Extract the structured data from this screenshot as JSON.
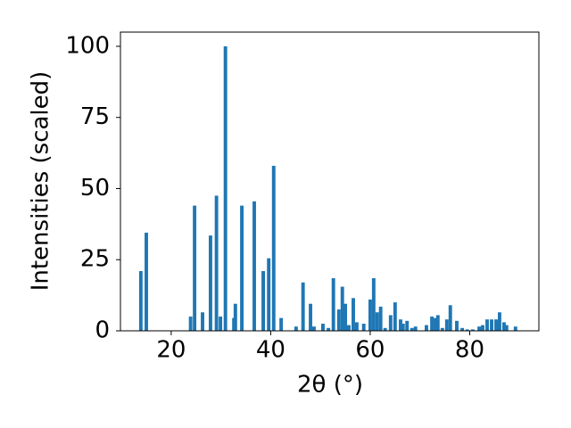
{
  "chart_data": {
    "type": "bar",
    "xlabel": "2θ (°)",
    "ylabel": "Intensities (scaled)",
    "x": [
      13.9,
      15.0,
      23.9,
      24.7,
      26.3,
      27.9,
      29.1,
      29.9,
      30.9,
      32.6,
      32.9,
      34.2,
      36.7,
      38.5,
      39.6,
      40.6,
      42.1,
      45.1,
      46.5,
      48.0,
      48.7,
      50.5,
      51.6,
      52.6,
      53.7,
      54.4,
      55.0,
      55.7,
      56.6,
      57.3,
      58.7,
      60.0,
      60.7,
      61.4,
      62.1,
      63.0,
      64.1,
      65.0,
      66.1,
      66.6,
      67.4,
      68.4,
      69.1,
      71.3,
      72.4,
      73.1,
      73.6,
      74.5,
      75.4,
      76.1,
      77.4,
      78.5,
      79.5,
      80.6,
      81.9,
      82.6,
      83.5,
      84.4,
      85.3,
      86.0,
      86.9,
      87.4,
      89.2
    ],
    "values": [
      21,
      34.5,
      5,
      44,
      6.5,
      33.5,
      47.5,
      5,
      100,
      4.5,
      9.5,
      44,
      45.5,
      21,
      25.5,
      58,
      4.5,
      1.5,
      17,
      9.5,
      1.5,
      2.5,
      1,
      18.5,
      7.5,
      15.5,
      9.5,
      2,
      11.5,
      3,
      2.5,
      11,
      18.5,
      6.5,
      8.5,
      1,
      5.5,
      10,
      4,
      2.5,
      3.5,
      1,
      1.5,
      2,
      5,
      4.5,
      5.5,
      1,
      4,
      9,
      3.5,
      1,
      0.5,
      0.5,
      1.5,
      2,
      4,
      4,
      4,
      6.5,
      3,
      2,
      1.5
    ],
    "color": "#1f77b4",
    "xlim": [
      9.8,
      93.9
    ],
    "xticks": [
      20,
      40,
      60,
      80
    ],
    "ylim": [
      0,
      105
    ],
    "yticks": [
      0,
      25,
      50,
      75,
      100
    ],
    "grid": false
  }
}
